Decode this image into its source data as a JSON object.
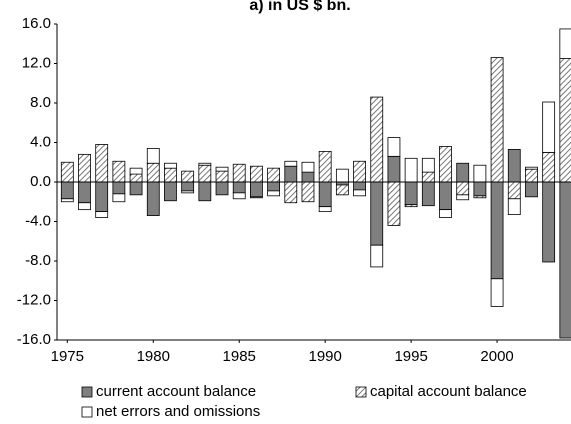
{
  "chart_data": {
    "type": "bar",
    "title": "a) in US $ bn.",
    "x": [
      1975,
      1976,
      1977,
      1978,
      1979,
      1980,
      1981,
      1982,
      1983,
      1984,
      1985,
      1986,
      1987,
      1988,
      1989,
      1990,
      1991,
      1992,
      1993,
      1994,
      1995,
      1996,
      1997,
      1998,
      1999,
      2000,
      2001,
      2002,
      2003,
      2004
    ],
    "series": [
      {
        "name": "current account balance",
        "color": "#7f7f7f",
        "values": [
          -1.7,
          -2.1,
          -3.0,
          -1.2,
          -1.3,
          -3.4,
          -1.9,
          -0.9,
          -1.9,
          -1.3,
          -1.1,
          -1.5,
          -0.9,
          1.6,
          1.0,
          -2.5,
          -0.3,
          -0.8,
          -6.4,
          2.6,
          -2.3,
          -2.4,
          -2.8,
          1.9,
          -1.4,
          -9.8,
          3.3,
          -1.5,
          -8.1,
          -15.8
        ]
      },
      {
        "name": "capital account balance",
        "color": "#ffffff",
        "hatched": true,
        "values": [
          2.0,
          2.8,
          3.8,
          2.1,
          0.8,
          1.9,
          1.4,
          1.1,
          1.7,
          1.1,
          1.8,
          1.6,
          1.4,
          -2.1,
          -2.0,
          3.1,
          -1.0,
          2.1,
          8.6,
          -4.4,
          -0.2,
          1.0,
          3.6,
          -1.3,
          -0.2,
          12.6,
          -1.7,
          1.3,
          3.0,
          12.5
        ]
      },
      {
        "name": "net errors and omissions",
        "color": "#ffffff",
        "values": [
          -0.3,
          -0.7,
          -0.6,
          -0.8,
          0.6,
          1.5,
          0.5,
          -0.2,
          0.2,
          0.4,
          -0.6,
          -0.1,
          -0.5,
          0.5,
          1.0,
          -0.5,
          1.3,
          -0.6,
          -2.2,
          1.9,
          2.4,
          1.4,
          -0.8,
          -0.5,
          1.7,
          -2.8,
          -1.6,
          0.2,
          5.1,
          3.0
        ]
      }
    ],
    "xlim": [
      1974.4,
      2004.3
    ],
    "xticks": [
      1975,
      1980,
      1985,
      1990,
      1995,
      2000
    ],
    "ylim": [
      -16,
      16
    ],
    "yticks": [
      {
        "value": -16,
        "label": "-16.0"
      },
      {
        "value": -12,
        "label": "-12.0"
      },
      {
        "value": -8,
        "label": "-8.0"
      },
      {
        "value": -4,
        "label": "-4.0"
      },
      {
        "value": 0,
        "label": "0.0"
      },
      {
        "value": 4,
        "label": "4.0"
      },
      {
        "value": 8,
        "label": "8.0"
      },
      {
        "value": 12,
        "label": "12.0"
      },
      {
        "value": 16,
        "label": "16.0"
      }
    ]
  }
}
